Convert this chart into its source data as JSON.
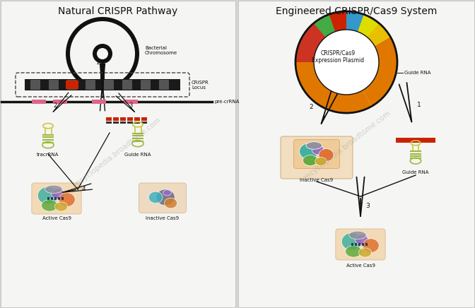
{
  "bg_color": "#d8d8d8",
  "left_title": "Natural CRISPR Pathway",
  "right_title": "Engineered CRISPR/Cas9 System",
  "title_fontsize": 10,
  "label_fontsize": 5.5,
  "small_fontsize": 5.0,
  "watermark": "encyclopedia.broadtome.com",
  "left_labels": {
    "bacterial_chromosome": "Bacterial\nChromosome",
    "crispr_locus": "CRISPR\nLocus",
    "precrna": "pre-crRNA",
    "tracrna": "tracrRNA",
    "guide_rna_left": "Guide RNA",
    "active_cas9_left": "Active Cas9",
    "inactive_cas9_left": "Inactive Cas9"
  },
  "right_labels": {
    "expression_plasmid": "CRISPR/Cas9\nExpression Plasmid",
    "guide_rna_right": "Guide RNA",
    "inactive_cas9_right": "Inactive Cas9",
    "guide_rna_right2": "Guide RNA",
    "active_cas9_right": "Active Cas9"
  },
  "colors": {
    "bg": "#d5d5d5",
    "panel_bg": "#f5f5f3",
    "black": "#111111",
    "dark_gray": "#444444",
    "mid_gray": "#888888",
    "red": "#cc2200",
    "orange": "#e07800",
    "yellow_orange": "#e8a020",
    "yellow": "#e8c000",
    "green": "#6a9a30",
    "teal": "#30a090",
    "blue": "#3355bb",
    "purple": "#8844cc",
    "pink": "#ee4488",
    "light_orange": "#f0b080",
    "light_green": "#99cc55",
    "divider": "#aaaaaa",
    "cas9_green": "#60a050",
    "cas9_teal": "#40b0a0",
    "cas9_orange": "#e07030",
    "cas9_red": "#cc4444",
    "cas9_purple": "#9966cc",
    "cas9_yellow": "#ccaa30",
    "cas9_blue": "#5577cc",
    "cas9_light": "#ddbb88"
  }
}
